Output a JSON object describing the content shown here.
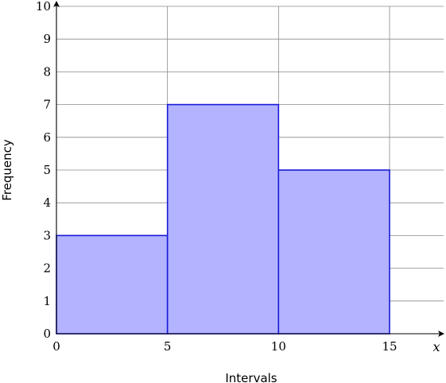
{
  "chart_data": {
    "type": "bar",
    "subtype": "histogram",
    "bins": [
      {
        "from": 0,
        "to": 5,
        "value": 3
      },
      {
        "from": 5,
        "to": 10,
        "value": 7
      },
      {
        "from": 10,
        "to": 15,
        "value": 5
      }
    ],
    "xlabel": "Intervals",
    "ylabel": "Frequency",
    "x_axis_var": "x",
    "xlim": [
      0,
      15
    ],
    "ylim": [
      0,
      10
    ],
    "x_ticks": [
      0,
      5,
      10,
      15
    ],
    "y_ticks": [
      0,
      1,
      2,
      3,
      4,
      5,
      6,
      7,
      8,
      9,
      10
    ],
    "grid": true,
    "colors": {
      "bar_fill": "#b3b3ff",
      "bar_stroke": "#1a1ad9",
      "grid": "#8a8a8a",
      "axis": "#000000"
    }
  }
}
